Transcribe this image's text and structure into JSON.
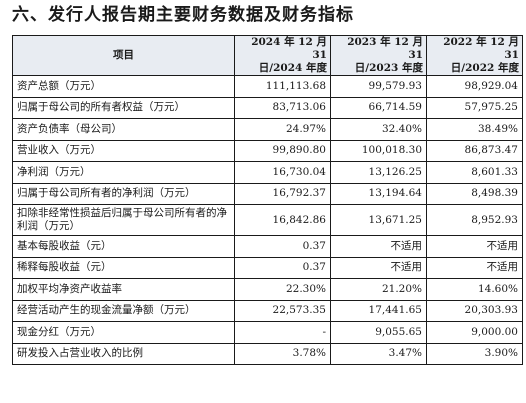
{
  "heading": "六、发行人报告期主要财务数据及财务指标",
  "table": {
    "header": {
      "item": "项目",
      "years": [
        [
          "2024 年 12 月 31",
          "日/2024 年度"
        ],
        [
          "2023 年 12 月 31",
          "日/2023 年度"
        ],
        [
          "2022 年 12 月 31",
          "日/2022 年度"
        ]
      ]
    },
    "rows": [
      {
        "label": "资产总额（万元）",
        "values": [
          "111,113.68",
          "99,579.93",
          "98,929.04"
        ]
      },
      {
        "label": "归属于母公司的所有者权益（万元）",
        "values": [
          "83,713.06",
          "66,714.59",
          "57,975.25"
        ]
      },
      {
        "label": "资产负债率（母公司）",
        "values": [
          "24.97%",
          "32.40%",
          "38.49%"
        ]
      },
      {
        "label": "营业收入（万元）",
        "values": [
          "99,890.80",
          "100,018.30",
          "86,873.47"
        ]
      },
      {
        "label": "净利润（万元）",
        "values": [
          "16,730.04",
          "13,126.25",
          "8,601.33"
        ]
      },
      {
        "label": "归属于母公司所有者的净利润（万元）",
        "values": [
          "16,792.37",
          "13,194.64",
          "8,498.39"
        ]
      },
      {
        "label": "扣除非经常性损益后归属于母公司所有者的净利润（万元）",
        "values": [
          "16,842.86",
          "13,671.25",
          "8,952.93"
        ]
      },
      {
        "label": "基本每股收益（元）",
        "values": [
          "0.37",
          "不适用",
          "不适用"
        ]
      },
      {
        "label": "稀释每股收益（元）",
        "values": [
          "0.37",
          "不适用",
          "不适用"
        ]
      },
      {
        "label": "加权平均净资产收益率",
        "values": [
          "22.30%",
          "21.20%",
          "14.60%"
        ]
      },
      {
        "label": "经营活动产生的现金流量净额（万元）",
        "values": [
          "22,573.35",
          "17,441.65",
          "20,303.93"
        ]
      },
      {
        "label": "现金分红（万元）",
        "values": [
          "-",
          "9,055.65",
          "9,000.00"
        ]
      },
      {
        "label": "研发投入占营业收入的比例",
        "values": [
          "3.78%",
          "3.47%",
          "3.90%"
        ]
      }
    ]
  }
}
